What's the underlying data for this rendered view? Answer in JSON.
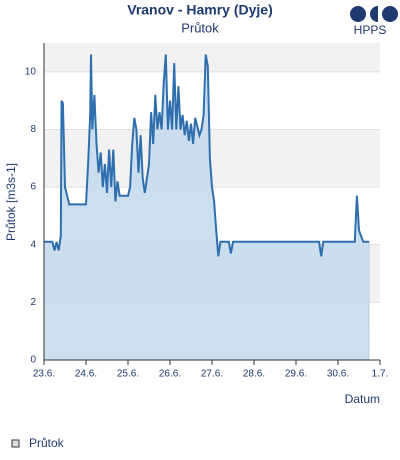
{
  "chart_data": {
    "type": "area",
    "title": "Vranov - Hamry (Dyje)",
    "subtitle": "Průtok",
    "logo": "HPPS",
    "y_label": "Průtok [m3s-1]",
    "x_label": "Datum",
    "xlim": [
      0,
      8
    ],
    "ylim": [
      0,
      11
    ],
    "xticks": [
      {
        "value": 0,
        "label": "23.6."
      },
      {
        "value": 1,
        "label": "24.6."
      },
      {
        "value": 2,
        "label": "25.6."
      },
      {
        "value": 3,
        "label": "26.6."
      },
      {
        "value": 4,
        "label": "27.6."
      },
      {
        "value": 5,
        "label": "28.6."
      },
      {
        "value": 6,
        "label": "29.6."
      },
      {
        "value": 7,
        "label": "30.6."
      },
      {
        "value": 8,
        "label": "1.7."
      }
    ],
    "yticks": [
      0,
      2,
      4,
      6,
      8,
      10
    ],
    "grid": true,
    "series": [
      {
        "name": "Průtok",
        "color": "#2f6fad",
        "fill": "#c5dcf0",
        "x": [
          0,
          0.2,
          0.25,
          0.3,
          0.35,
          0.4,
          0.42,
          0.45,
          0.5,
          0.55,
          0.6,
          1.0,
          1.05,
          1.1,
          1.12,
          1.15,
          1.2,
          1.25,
          1.3,
          1.35,
          1.4,
          1.45,
          1.5,
          1.55,
          1.6,
          1.65,
          1.7,
          1.75,
          1.8,
          2.0,
          2.05,
          2.1,
          2.15,
          2.2,
          2.25,
          2.3,
          2.35,
          2.4,
          2.5,
          2.55,
          2.6,
          2.65,
          2.7,
          2.75,
          2.8,
          2.85,
          2.9,
          2.95,
          3.0,
          3.05,
          3.1,
          3.15,
          3.2,
          3.25,
          3.3,
          3.35,
          3.4,
          3.45,
          3.5,
          3.55,
          3.6,
          3.7,
          3.75,
          3.8,
          3.85,
          3.9,
          3.95,
          4.0,
          4.05,
          4.1,
          4.15,
          4.2,
          4.4,
          4.45,
          4.5,
          6.55,
          6.6,
          6.65,
          7.4,
          7.45,
          7.5,
          7.55,
          7.6,
          7.74
        ],
        "values": [
          4.1,
          4.1,
          3.8,
          4.1,
          3.8,
          4.3,
          9.0,
          8.9,
          6.0,
          5.7,
          5.4,
          5.4,
          6.8,
          8.5,
          10.6,
          8.0,
          9.2,
          7.5,
          6.5,
          7.2,
          6.0,
          6.8,
          5.8,
          7.3,
          6.0,
          7.3,
          5.5,
          6.2,
          5.7,
          5.7,
          6.0,
          7.5,
          8.4,
          8.0,
          6.5,
          7.8,
          6.3,
          5.8,
          6.8,
          8.6,
          7.5,
          9.2,
          8.0,
          8.6,
          8.0,
          9.6,
          10.6,
          8.0,
          9.0,
          8.0,
          10.3,
          8.0,
          9.5,
          8.0,
          8.5,
          7.8,
          8.3,
          7.6,
          8.2,
          7.5,
          8.4,
          7.8,
          8.0,
          8.5,
          10.6,
          10.2,
          7.0,
          6.0,
          5.5,
          4.5,
          3.6,
          4.1,
          4.1,
          3.7,
          4.1,
          4.1,
          3.6,
          4.1,
          4.1,
          5.7,
          4.5,
          4.3,
          4.1,
          4.1
        ]
      }
    ],
    "legend": "bottom-left"
  }
}
